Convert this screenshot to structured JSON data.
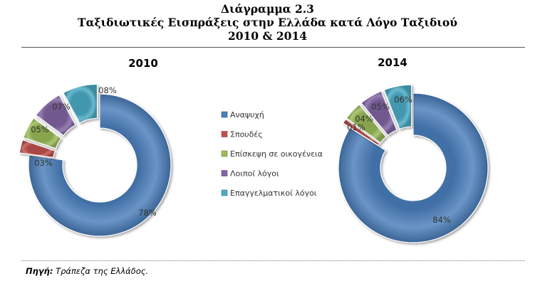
{
  "header": {
    "diagram_no": "Διάγραμμα 2.3",
    "title": "Ταξιδιωτικές Εισπράξεις στην Ελλάδα κατά Λόγο Ταξιδιού",
    "period": "2010 & 2014"
  },
  "chart_data": {
    "type": "pie",
    "variant": "donut",
    "title": "Ταξιδιωτικές Εισπράξεις στην Ελλάδα κατά Λόγο Ταξιδιού",
    "categories": [
      "Αναψυχή",
      "Σπουδές",
      "Επίσκεψη σε οικογένεια",
      "Λοιποί λόγοι",
      "Επαγγελματικοί λόγοι"
    ],
    "colors": [
      "#4a7ebb",
      "#c0504d",
      "#9bbb59",
      "#8064a2",
      "#4bacc6"
    ],
    "series": [
      {
        "name": "2010",
        "values": [
          78,
          3,
          5,
          7,
          8
        ],
        "labels": [
          "78%",
          "03%",
          "05%",
          "07%",
          "08%"
        ]
      },
      {
        "name": "2014",
        "values": [
          84,
          1,
          4,
          5,
          6
        ],
        "labels": [
          "84%",
          "01%",
          "04%",
          "05%",
          "06%"
        ]
      }
    ],
    "legend_position": "center"
  },
  "footer": {
    "source_label": "Πηγή:",
    "source_text": " Τράπεζα της Ελλάδος."
  }
}
